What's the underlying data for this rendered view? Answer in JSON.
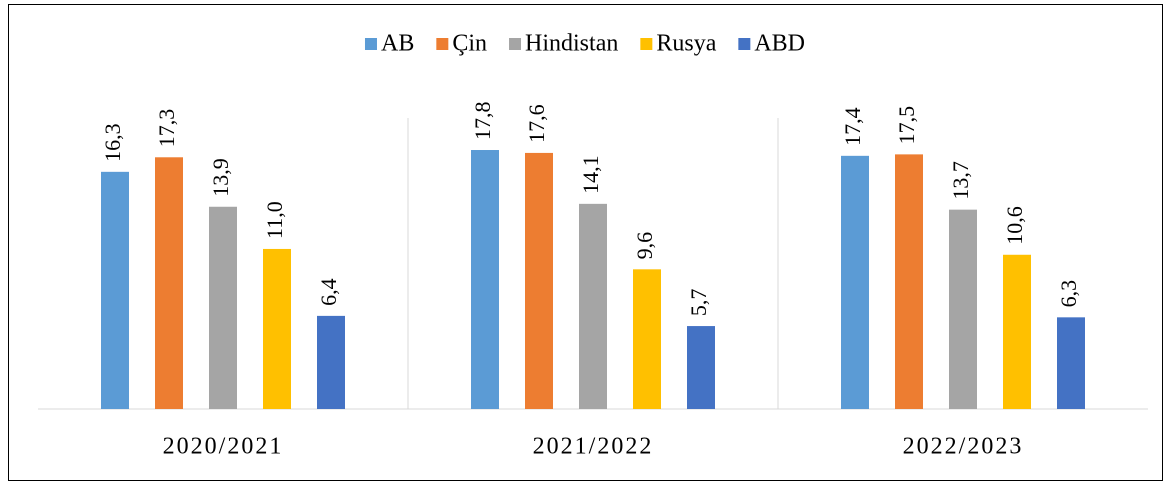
{
  "chart_data": {
    "type": "bar",
    "categories": [
      "2020/2021",
      "2021/2022",
      "2022/2023"
    ],
    "series": [
      {
        "name": "AB",
        "color": "#5b9bd5",
        "values": [
          16.3,
          17.8,
          17.4
        ],
        "value_labels": [
          "16,3",
          "17,8",
          "17,4"
        ]
      },
      {
        "name": "Çin",
        "color": "#ed7d31",
        "values": [
          17.3,
          17.6,
          17.5
        ],
        "value_labels": [
          "17,3",
          "17,6",
          "17,5"
        ]
      },
      {
        "name": "Hindistan",
        "color": "#a5a5a5",
        "values": [
          13.9,
          14.1,
          13.7
        ],
        "value_labels": [
          "13,9",
          "14,1",
          "13,7"
        ]
      },
      {
        "name": "Rusya",
        "color": "#ffc000",
        "values": [
          11.0,
          9.6,
          10.6
        ],
        "value_labels": [
          "11,0",
          "9,6",
          "10,6"
        ]
      },
      {
        "name": "ABD",
        "color": "#4472c4",
        "values": [
          6.4,
          5.7,
          6.3
        ],
        "value_labels": [
          "6,4",
          "5,7",
          "6,3"
        ]
      }
    ],
    "ylim": [
      0,
      20
    ],
    "legend": "top"
  }
}
